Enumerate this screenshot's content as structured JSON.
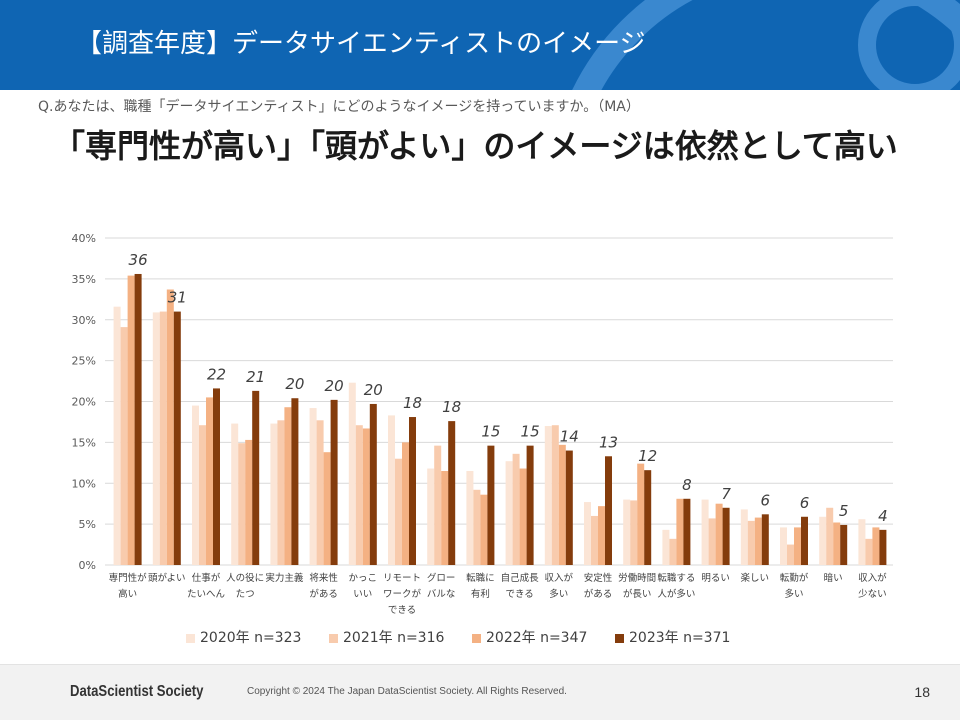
{
  "colors": {
    "header_bg": "#0f65b3",
    "header_decoration": "#3a88cf",
    "footer_bg": "#f2f2f2"
  },
  "header": {
    "title": "【調査年度】データサイエンティストのイメージ"
  },
  "chart_data": {
    "type": "bar",
    "title": "「専門性が高い」「頭がよい」のイメージは依然として高い",
    "subtitle": "Q.あなたは、職種「データサイエンティスト」にどのようなイメージを持っていますか。（MA）",
    "xlabel": "",
    "ylabel": "",
    "ylim": [
      0,
      40
    ],
    "y_ticks": [
      0,
      5,
      10,
      15,
      20,
      25,
      30,
      35,
      40
    ],
    "y_tick_labels": [
      "0%",
      "5%",
      "10%",
      "15%",
      "20%",
      "25%",
      "30%",
      "35%",
      "40%"
    ],
    "grid": true,
    "legend": "bottom",
    "categories": [
      "専門性が\n高い",
      "頭がよい",
      "仕事が\nたいへん",
      "人の役に\nたつ",
      "実力主義",
      "将来性\nがある",
      "かっこ\nいい",
      "リモート\nワークが\nできる",
      "グロー\nバルな",
      "転職に\n有利",
      "自己成長\nできる",
      "収入が\n多い",
      "安定性\nがある",
      "労働時間\nが長い",
      "転職する\n人が多い",
      "明るい",
      "楽しい",
      "転勤が\n多い",
      "暗い",
      "収入が\n少ない"
    ],
    "series": [
      {
        "name": "2020年 n=323",
        "color": "#FBE5D6",
        "values": [
          31.6,
          30.9,
          19.5,
          17.3,
          17.3,
          19.2,
          22.3,
          18.3,
          11.8,
          11.5,
          12.7,
          17.0,
          7.7,
          8.0,
          4.3,
          8.0,
          6.8,
          4.6,
          5.9,
          5.6
        ]
      },
      {
        "name": "2021年 n=316",
        "color": "#F8CBAD",
        "values": [
          29.1,
          31.0,
          17.1,
          14.9,
          17.7,
          17.7,
          17.1,
          13.0,
          14.6,
          9.2,
          13.6,
          17.1,
          6.0,
          7.9,
          3.2,
          5.7,
          5.4,
          2.5,
          7.0,
          3.2
        ]
      },
      {
        "name": "2022年 n=347",
        "color": "#F4B183",
        "values": [
          35.4,
          33.7,
          20.5,
          15.3,
          19.3,
          13.8,
          16.7,
          15.0,
          11.5,
          8.6,
          11.8,
          14.7,
          7.2,
          12.4,
          8.1,
          7.5,
          5.8,
          4.6,
          5.2,
          4.6
        ]
      },
      {
        "name": "2023年 n=371",
        "color": "#843C0C",
        "values": [
          35.6,
          31.0,
          21.6,
          21.3,
          20.4,
          20.2,
          19.7,
          18.1,
          17.6,
          14.6,
          14.6,
          14.0,
          13.3,
          11.6,
          8.1,
          7.0,
          6.2,
          5.9,
          4.9,
          4.3
        ],
        "data_labels": [
          "36",
          "31",
          "22",
          "21",
          "20",
          "20",
          "20",
          "18",
          "18",
          "15",
          "15",
          "14",
          "13",
          "12",
          "8",
          "7",
          "6",
          "6",
          "5",
          "4"
        ]
      }
    ]
  },
  "footer": {
    "logo_text": "DataScientist Society",
    "copyright": "Copyright © 2024 The Japan DataScientist Society. All Rights Reserved.",
    "page_number": "18"
  }
}
